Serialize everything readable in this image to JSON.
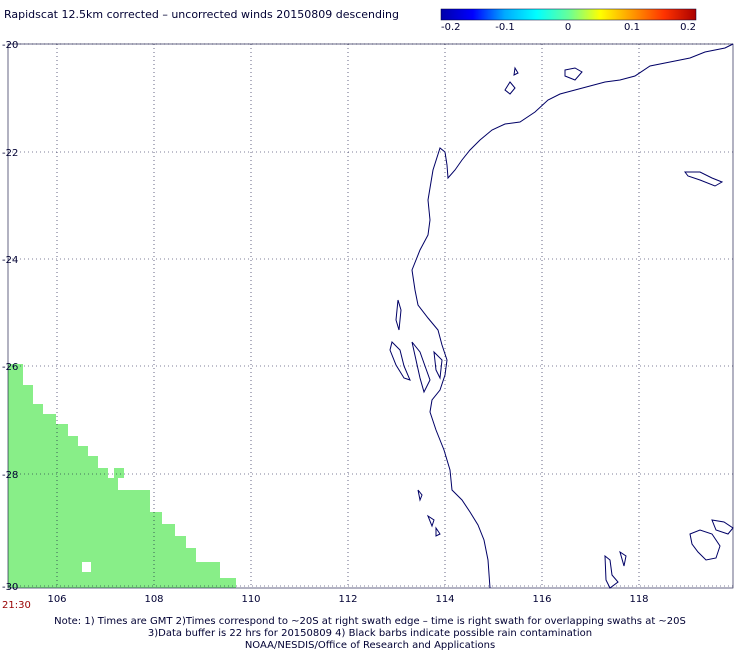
{
  "title": "Rapidscat 12.5km corrected – uncorrected winds 20150809 descending",
  "colorbar": {
    "labels": [
      "-0.2",
      "-0.1",
      "0",
      "0.1",
      "0.2"
    ],
    "stops": [
      "#0000aa",
      "#0000ff",
      "#00aaff",
      "#00ffff",
      "#66ff99",
      "#ffff00",
      "#ff9900",
      "#ff3300",
      "#aa0000"
    ]
  },
  "map": {
    "lon_ticks": [
      "106",
      "108",
      "110",
      "112",
      "114",
      "116",
      "118"
    ],
    "lat_ticks": [
      "-20",
      "-22",
      "-24",
      "-26",
      "-28",
      "-30"
    ],
    "swath_color": "#88ee88",
    "coast_color": "#000066"
  },
  "time_label": "21:30",
  "notes": [
    "Note: 1) Times are GMT 2)Times correspond to ~20S at right swath edge – time is right swath for overlapping swaths at ~20S",
    "3)Data buffer is 22 hrs for 20150809 4) Black barbs indicate possible rain contamination",
    "NOAA/NESDIS/Office of Research and Applications"
  ]
}
